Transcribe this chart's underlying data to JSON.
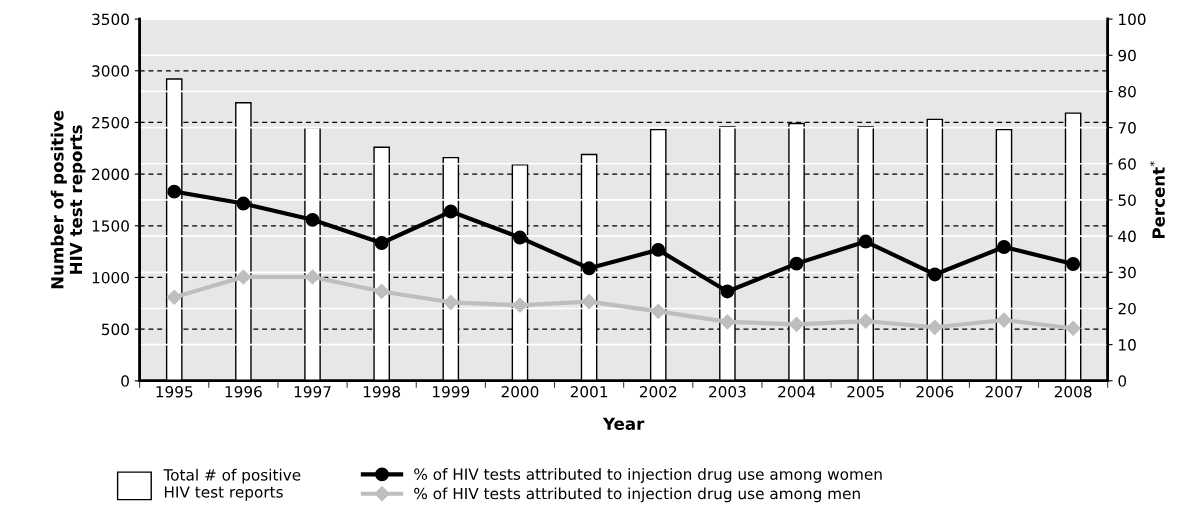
{
  "chart_data": {
    "type": "bar",
    "xlabel": "Year",
    "ylabel": "Number of positive\nHIV test reports",
    "y2label": "Percent$^{*}$",
    "categories": [
      "1995",
      "1996",
      "1997",
      "1998",
      "1999",
      "2000",
      "2001",
      "2002",
      "2003",
      "2004",
      "2005",
      "2006",
      "2007",
      "2008"
    ],
    "series": [
      {
        "name": "Total # of positive\nHIV test reports",
        "color": "#ffffff",
        "values": [
          2920,
          2690,
          2450,
          2260,
          2160,
          2090,
          2190,
          2430,
          2460,
          2490,
          2460,
          2530,
          2430,
          2590
        ]
      },
      {
        "name": "% of HIV tests attributed to injection drug use among women",
        "type": "line",
        "axis": "y2",
        "marker": "circle",
        "color": "#000000",
        "values": [
          52.3,
          49.0,
          44.5,
          38.1,
          46.8,
          39.6,
          31.1,
          36.2,
          24.7,
          32.4,
          38.5,
          29.4,
          37.0,
          32.3
        ]
      },
      {
        "name": "% of HIV tests attributed to injection drug use among men",
        "type": "line",
        "axis": "y2",
        "marker": "diamond",
        "color": "#bcbec0",
        "values": [
          23.1,
          28.7,
          28.7,
          24.7,
          21.7,
          20.9,
          21.9,
          19.2,
          16.3,
          15.6,
          16.5,
          14.8,
          16.8,
          14.5
        ]
      }
    ],
    "ylim": [
      0,
      3500
    ],
    "yticks": [
      0,
      500,
      1000,
      1500,
      2000,
      2500,
      3000,
      3500
    ],
    "y2lim": [
      0,
      100
    ],
    "y2ticks": [
      0,
      10,
      20,
      30,
      40,
      50,
      60,
      70,
      80,
      90,
      100
    ],
    "grid": true,
    "legend": "bottom"
  }
}
